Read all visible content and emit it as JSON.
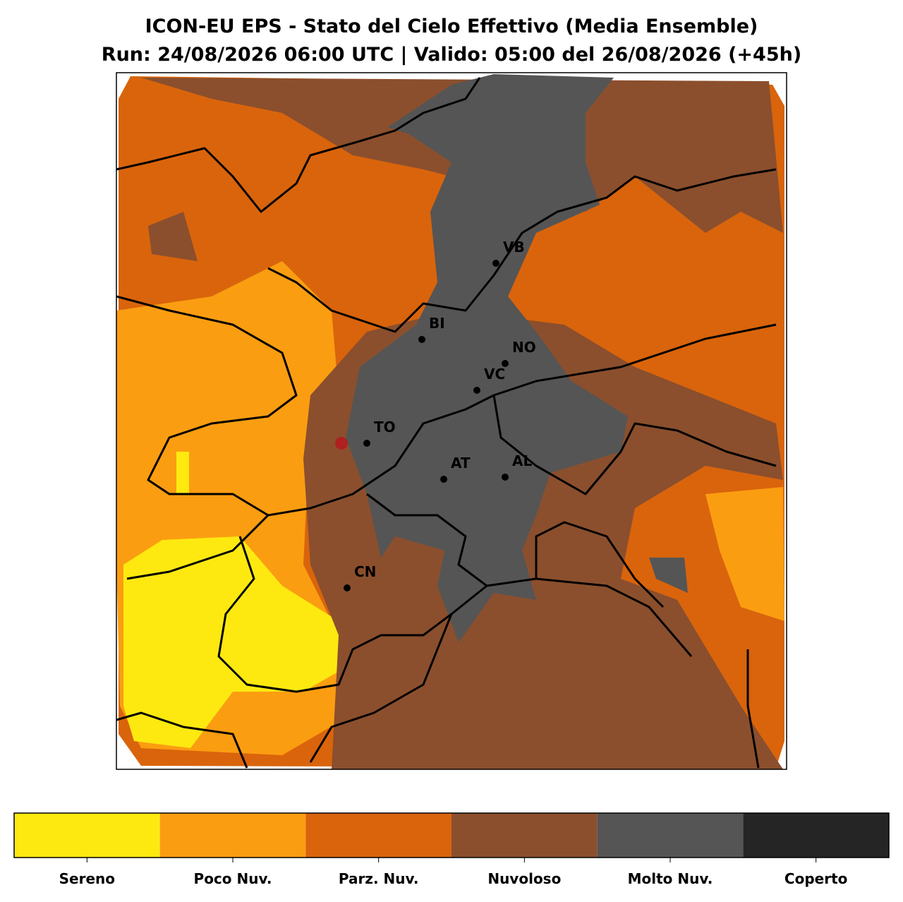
{
  "header": {
    "title": "ICON-EU EPS - Stato del Cielo Effettivo (Media Ensemble)",
    "subtitle": "Run: 24/08/2026 06:00 UTC | Valido: 05:00 del 26/08/2026 (+45h)"
  },
  "cities": [
    "VB",
    "BI",
    "NO",
    "VC",
    "TO",
    "AT",
    "AL",
    "CN"
  ],
  "legend": {
    "categories": [
      "Sereno",
      "Poco Nuv.",
      "Parz. Nuv.",
      "Nuvoloso",
      "Molto Nuv.",
      "Coperto"
    ],
    "colors": [
      "#fde910",
      "#fb9d11",
      "#d9640c",
      "#8b4f2d",
      "#555555",
      "#252525"
    ]
  }
}
